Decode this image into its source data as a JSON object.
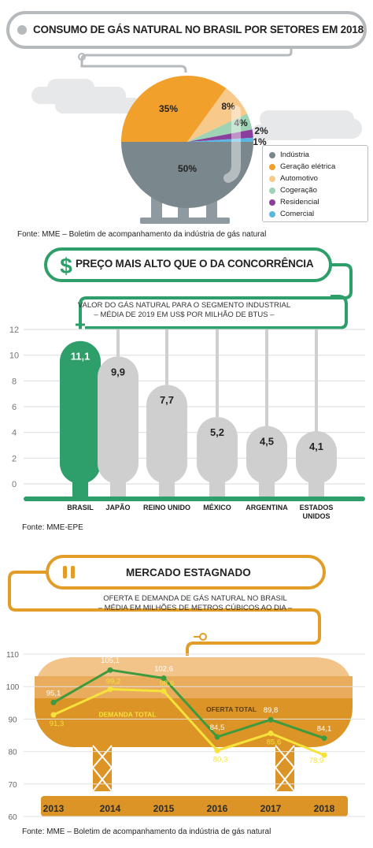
{
  "section1": {
    "title": "CONSUMO DE GÁS NATURAL NO BRASIL POR SETORES EM 2018",
    "source": "Fonte: MME – Boletim de acompanhamento da indústria de gás natural"
  },
  "section2": {
    "title": "PREÇO MAIS ALTO QUE O DA CONCORRÊNCIA",
    "subtitle_line1": "VALOR DO GÁS NATURAL PARA O SEGMENTO INDUSTRIAL",
    "subtitle_line2": "– MÉDIA DE 2019 EM US$ POR MILHÃO DE BTUS –",
    "source": "Fonte: MME-EPE"
  },
  "section3": {
    "title": "MERCADO ESTAGNADO",
    "subtitle_line1": "OFERTA E DEMANDA DE GÁS NATURAL NO BRASIL",
    "subtitle_line2": "– MÉDIA EM MILHÕES DE METROS CÚBICOS AO DIA –",
    "source": "Fonte: MME – Boletim de acompanhamento da indústria de gás natural"
  },
  "chart_data": [
    {
      "type": "pie",
      "title": "CONSUMO DE GÁS NATURAL NO BRASIL POR SETORES EM 2018",
      "categories": [
        "Indústria",
        "Geração elétrica",
        "Automotivo",
        "Cogeração",
        "Residencial",
        "Comercial"
      ],
      "values": [
        50,
        35,
        8,
        4,
        2,
        1
      ],
      "labels": [
        "50%",
        "35%",
        "8%",
        "4%",
        "2%",
        "1%"
      ],
      "colors": [
        "#7a878d",
        "#f2a02c",
        "#f7c98a",
        "#9fd3b5",
        "#8a3f9a",
        "#5bb6e0"
      ],
      "legend": "bottom-right"
    },
    {
      "type": "bar",
      "title": "PREÇO MAIS ALTO QUE O DA CONCORRÊNCIA",
      "categories": [
        "BRASIL",
        "JAPÃO",
        "REINO UNIDO",
        "MÉXICO",
        "ARGENTINA",
        "ESTADOS UNIDOS"
      ],
      "values": [
        11.1,
        9.9,
        7.7,
        5.2,
        4.5,
        4.1
      ],
      "value_labels": [
        "11,1",
        "9,9",
        "7,7",
        "5,2",
        "4,5",
        "4,1"
      ],
      "yticks": [
        "0",
        "2",
        "4",
        "6",
        "8",
        "10",
        "12"
      ],
      "ylim": [
        0,
        12
      ],
      "colors": {
        "highlight": "#2e9e6a",
        "other": "#cfcfcf"
      }
    },
    {
      "type": "line",
      "title": "MERCADO ESTAGNADO",
      "categories": [
        "2013",
        "2014",
        "2015",
        "2016",
        "2017",
        "2018"
      ],
      "yticks": [
        "60",
        "70",
        "80",
        "90",
        "100",
        "110"
      ],
      "ylim": [
        60,
        110
      ],
      "series": [
        {
          "name": "OFERTA TOTAL",
          "values": [
            95.1,
            105.1,
            102.6,
            84.5,
            89.8,
            84.1
          ],
          "labels": [
            "95,1",
            "105,1",
            "102,6",
            "84,5",
            "89,8",
            "84,1"
          ],
          "color": "#3e9a3e"
        },
        {
          "name": "DEMANDA TOTAL",
          "values": [
            91.3,
            99.2,
            98.6,
            80.3,
            85.6,
            78.9
          ],
          "labels": [
            "91,3",
            "99,2",
            "98,6",
            "80,3",
            "85,6",
            "78,9"
          ],
          "color": "#f5e23a"
        }
      ]
    }
  ]
}
